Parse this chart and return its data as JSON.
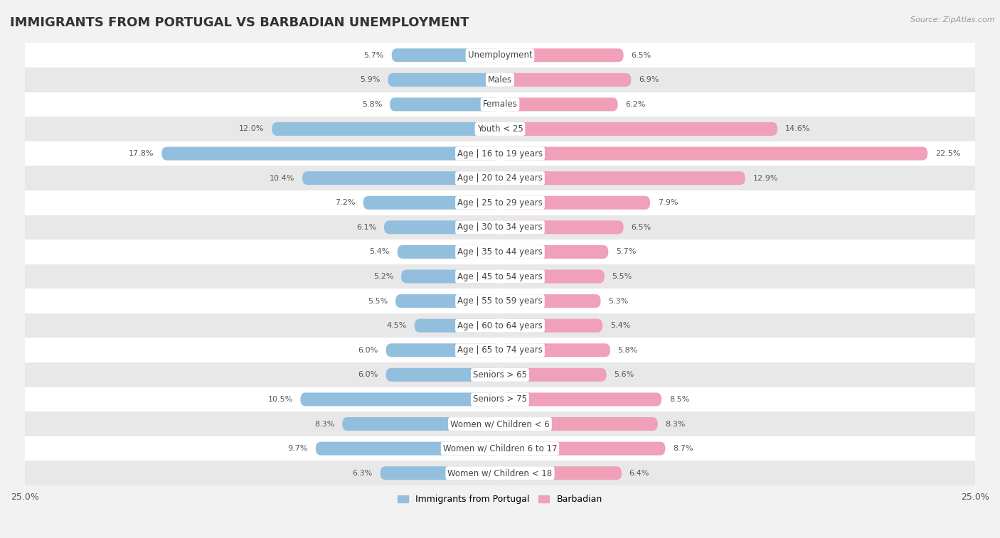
{
  "title": "IMMIGRANTS FROM PORTUGAL VS BARBADIAN UNEMPLOYMENT",
  "source": "Source: ZipAtlas.com",
  "categories": [
    "Unemployment",
    "Males",
    "Females",
    "Youth < 25",
    "Age | 16 to 19 years",
    "Age | 20 to 24 years",
    "Age | 25 to 29 years",
    "Age | 30 to 34 years",
    "Age | 35 to 44 years",
    "Age | 45 to 54 years",
    "Age | 55 to 59 years",
    "Age | 60 to 64 years",
    "Age | 65 to 74 years",
    "Seniors > 65",
    "Seniors > 75",
    "Women w/ Children < 6",
    "Women w/ Children 6 to 17",
    "Women w/ Children < 18"
  ],
  "left_values": [
    5.7,
    5.9,
    5.8,
    12.0,
    17.8,
    10.4,
    7.2,
    6.1,
    5.4,
    5.2,
    5.5,
    4.5,
    6.0,
    6.0,
    10.5,
    8.3,
    9.7,
    6.3
  ],
  "right_values": [
    6.5,
    6.9,
    6.2,
    14.6,
    22.5,
    12.9,
    7.9,
    6.5,
    5.7,
    5.5,
    5.3,
    5.4,
    5.8,
    5.6,
    8.5,
    8.3,
    8.7,
    6.4
  ],
  "left_color": "#92bfdd",
  "right_color": "#f0a0b8",
  "left_label": "Immigrants from Portugal",
  "right_label": "Barbadian",
  "xlim": 25.0,
  "bg_color": "#f2f2f2",
  "row_colors": [
    "#ffffff",
    "#e8e8e8"
  ],
  "title_fontsize": 13,
  "label_fontsize": 8.5,
  "value_fontsize": 8.0
}
